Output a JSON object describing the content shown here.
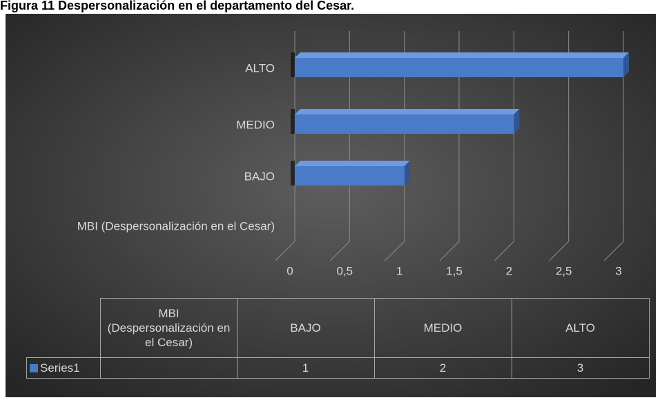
{
  "chart_data": {
    "type": "bar3d_horizontal",
    "title": "Figura 11 Despersonalización en el departamento del Cesar.",
    "categories": [
      "MBI (Despersonalización en el Cesar)",
      "BAJO",
      "MEDIO",
      "ALTO"
    ],
    "series": [
      {
        "name": "Series1",
        "color": "#4a7bc8",
        "values": [
          null,
          1,
          2,
          3
        ]
      }
    ],
    "xlim": [
      0,
      3
    ],
    "xticks": [
      0,
      {
        "value": 0.5,
        "label": "0,5"
      },
      1,
      {
        "value": 1.5,
        "label": "1,5"
      },
      2,
      {
        "value": 2.5,
        "label": "2,5"
      },
      3
    ],
    "grid": true,
    "data_table": true
  }
}
